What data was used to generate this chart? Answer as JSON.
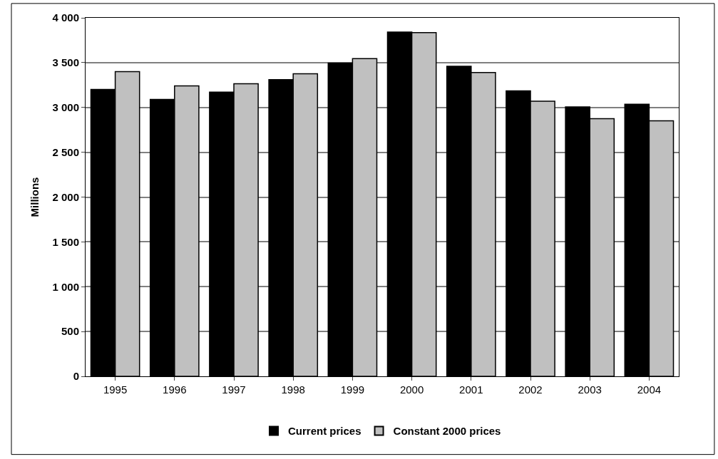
{
  "chart_data": {
    "type": "bar",
    "ylabel": "Millions",
    "categories": [
      "1995",
      "1996",
      "1997",
      "1998",
      "1999",
      "2000",
      "2001",
      "2002",
      "2003",
      "2004"
    ],
    "series": [
      {
        "name": "Current prices",
        "color": "#000000",
        "values": [
          3200,
          3090,
          3170,
          3310,
          3495,
          3840,
          3460,
          3185,
          3005,
          3035
        ]
      },
      {
        "name": "Constant 2000 prices",
        "color": "#c0c0c0",
        "values": [
          3400,
          3240,
          3265,
          3375,
          3545,
          3835,
          3390,
          3070,
          2875,
          2850
        ]
      }
    ],
    "ylim": [
      0,
      4000
    ],
    "yticks": [
      {
        "value": 0,
        "label": "0"
      },
      {
        "value": 500,
        "label": "500"
      },
      {
        "value": 1000,
        "label": "1 000"
      },
      {
        "value": 1500,
        "label": "1 500"
      },
      {
        "value": 2000,
        "label": "2 000"
      },
      {
        "value": 2500,
        "label": "2 500"
      },
      {
        "value": 3000,
        "label": "3 000"
      },
      {
        "value": 3500,
        "label": "3 500"
      },
      {
        "value": 4000,
        "label": "4 000"
      }
    ],
    "grid": "y",
    "legend": "bottom"
  }
}
